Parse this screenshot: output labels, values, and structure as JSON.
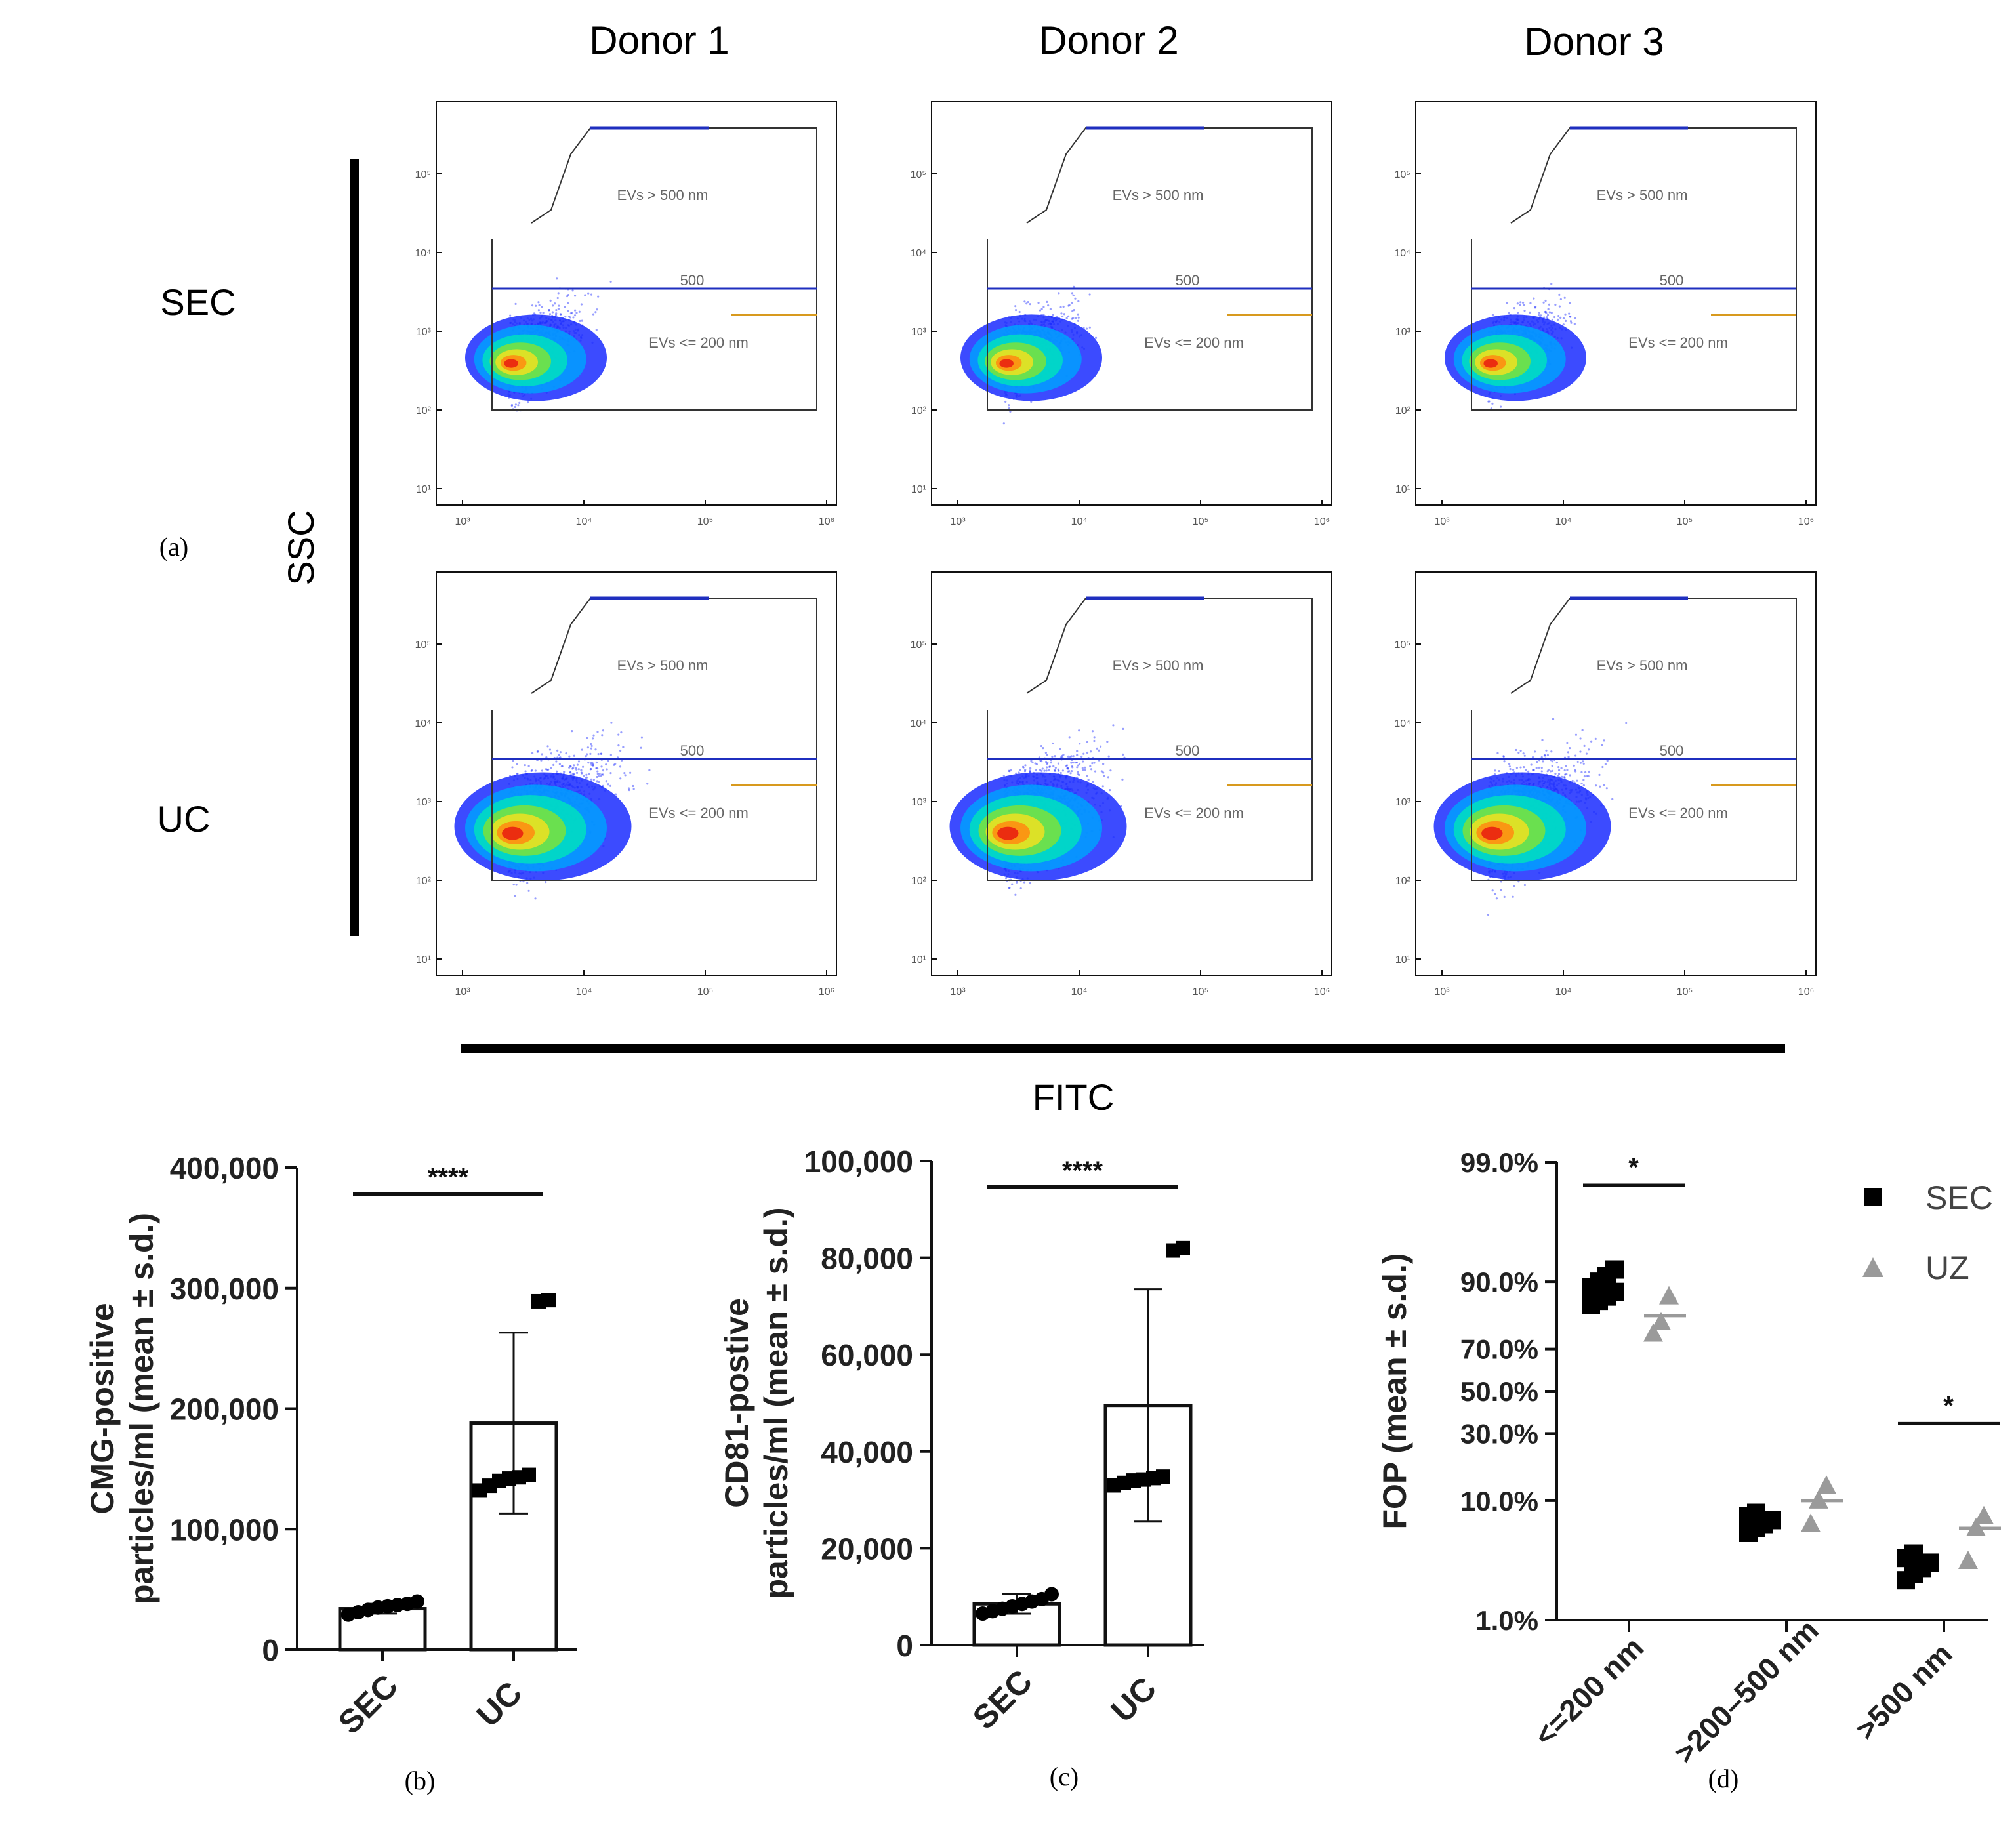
{
  "colors": {
    "axis": "#111111",
    "text": "#4a4a4a",
    "bar": "#111111",
    "sec_marker": "#000000",
    "uc_marker": "#9a9a9a",
    "gate_box": "#333333",
    "gate_blue": "#1f2fbf",
    "gate_green": "#3cc24a",
    "gate_orange": "#d89a1e",
    "gate_red": "#d0401e",
    "density": [
      "#1a2bff",
      "#00a0ff",
      "#00e0c0",
      "#7de23a",
      "#f0e020",
      "#ff8a10",
      "#e81a10"
    ]
  },
  "panel_a": {
    "letter": "(a)",
    "columns": [
      "Donor 1",
      "Donor 2",
      "Donor 3"
    ],
    "rows": [
      "SEC",
      "UC"
    ],
    "y_axis_title": "SSC",
    "x_axis_title": "FITC",
    "y_ticks": [
      "10⁵",
      "10⁴",
      "10³",
      "10²",
      "10¹"
    ],
    "x_ticks": [
      "10³",
      "10⁴",
      "10⁵",
      "10⁶"
    ],
    "gate_labels": {
      "upper": "EVs > 500 nm",
      "middle": "500",
      "lower": "EVs <= 200 nm"
    }
  },
  "panel_b": {
    "letter": "(b)"
  },
  "panel_c": {
    "letter": "(c)"
  },
  "panel_d": {
    "letter": "(d)"
  },
  "chart_data": [
    {
      "panel": "(b)",
      "type": "bar",
      "categories": [
        "SEC",
        "UC"
      ],
      "values": [
        34000,
        188000
      ],
      "error": [
        4000,
        75000
      ],
      "points": [
        [
          29000,
          31000,
          33000,
          35000,
          36000,
          37000,
          38000,
          40000
        ],
        [
          132000,
          136000,
          140000,
          142000,
          143000,
          145000,
          289000,
          290000
        ]
      ],
      "ylabel": [
        "CMG-positive",
        "particles/ml (mean ± s.d.)"
      ],
      "yticks": [
        0,
        100000,
        200000,
        300000,
        400000
      ],
      "ytick_labels": [
        "0",
        "100,000",
        "200,000",
        "300,000",
        "400,000"
      ],
      "ylim": [
        0,
        400000
      ],
      "significance": "****"
    },
    {
      "panel": "(c)",
      "type": "bar",
      "categories": [
        "SEC",
        "UC"
      ],
      "values": [
        8500,
        49500
      ],
      "error": [
        2000,
        24000
      ],
      "points": [
        [
          6500,
          7000,
          7500,
          8000,
          8500,
          9000,
          9500,
          10500
        ],
        [
          33000,
          33500,
          34000,
          34200,
          34500,
          34800,
          81500,
          82000
        ]
      ],
      "ylabel": [
        "CD81-postive",
        "particles/ml (mean ± s.d.)"
      ],
      "yticks": [
        0,
        20000,
        40000,
        60000,
        80000,
        100000
      ],
      "ytick_labels": [
        "0",
        "20,000",
        "40,000",
        "60,000",
        "80,000",
        "100,000"
      ],
      "ylim": [
        0,
        100000
      ],
      "significance": "****"
    },
    {
      "panel": "(d)",
      "type": "scatter",
      "scale": "probability",
      "categories": [
        "<=200 nm",
        ">200–500 nm",
        ">500 nm"
      ],
      "series": [
        {
          "name": "SEC",
          "marker": "square",
          "means": [
            87,
            7,
            3
          ],
          "points": [
            [
              85,
              86,
              87,
              88,
              89,
              90,
              91,
              92
            ],
            [
              5.5,
              6,
              6.5,
              7,
              7.5,
              8
            ],
            [
              2.2,
              2.5,
              2.8,
              3.1,
              3.4,
              3.7
            ]
          ]
        },
        {
          "name": "UZ",
          "marker": "triangle",
          "means": [
            82,
            10,
            6
          ],
          "points": [
            [
              76,
              80,
              87
            ],
            [
              6.5,
              10,
              13
            ],
            [
              3.2,
              6,
              7.5
            ]
          ]
        }
      ],
      "ylabel": [
        "FOP (mean ± s.d.)"
      ],
      "yticks": [
        1,
        10,
        30,
        50,
        70,
        90,
        99
      ],
      "ytick_labels": [
        "1.0%",
        "10.0%",
        "30.0%",
        "50.0%",
        "70.0%",
        "90.0%",
        "99.0%"
      ],
      "significance": [
        "*",
        "",
        "*"
      ],
      "legend": "top-right"
    }
  ]
}
